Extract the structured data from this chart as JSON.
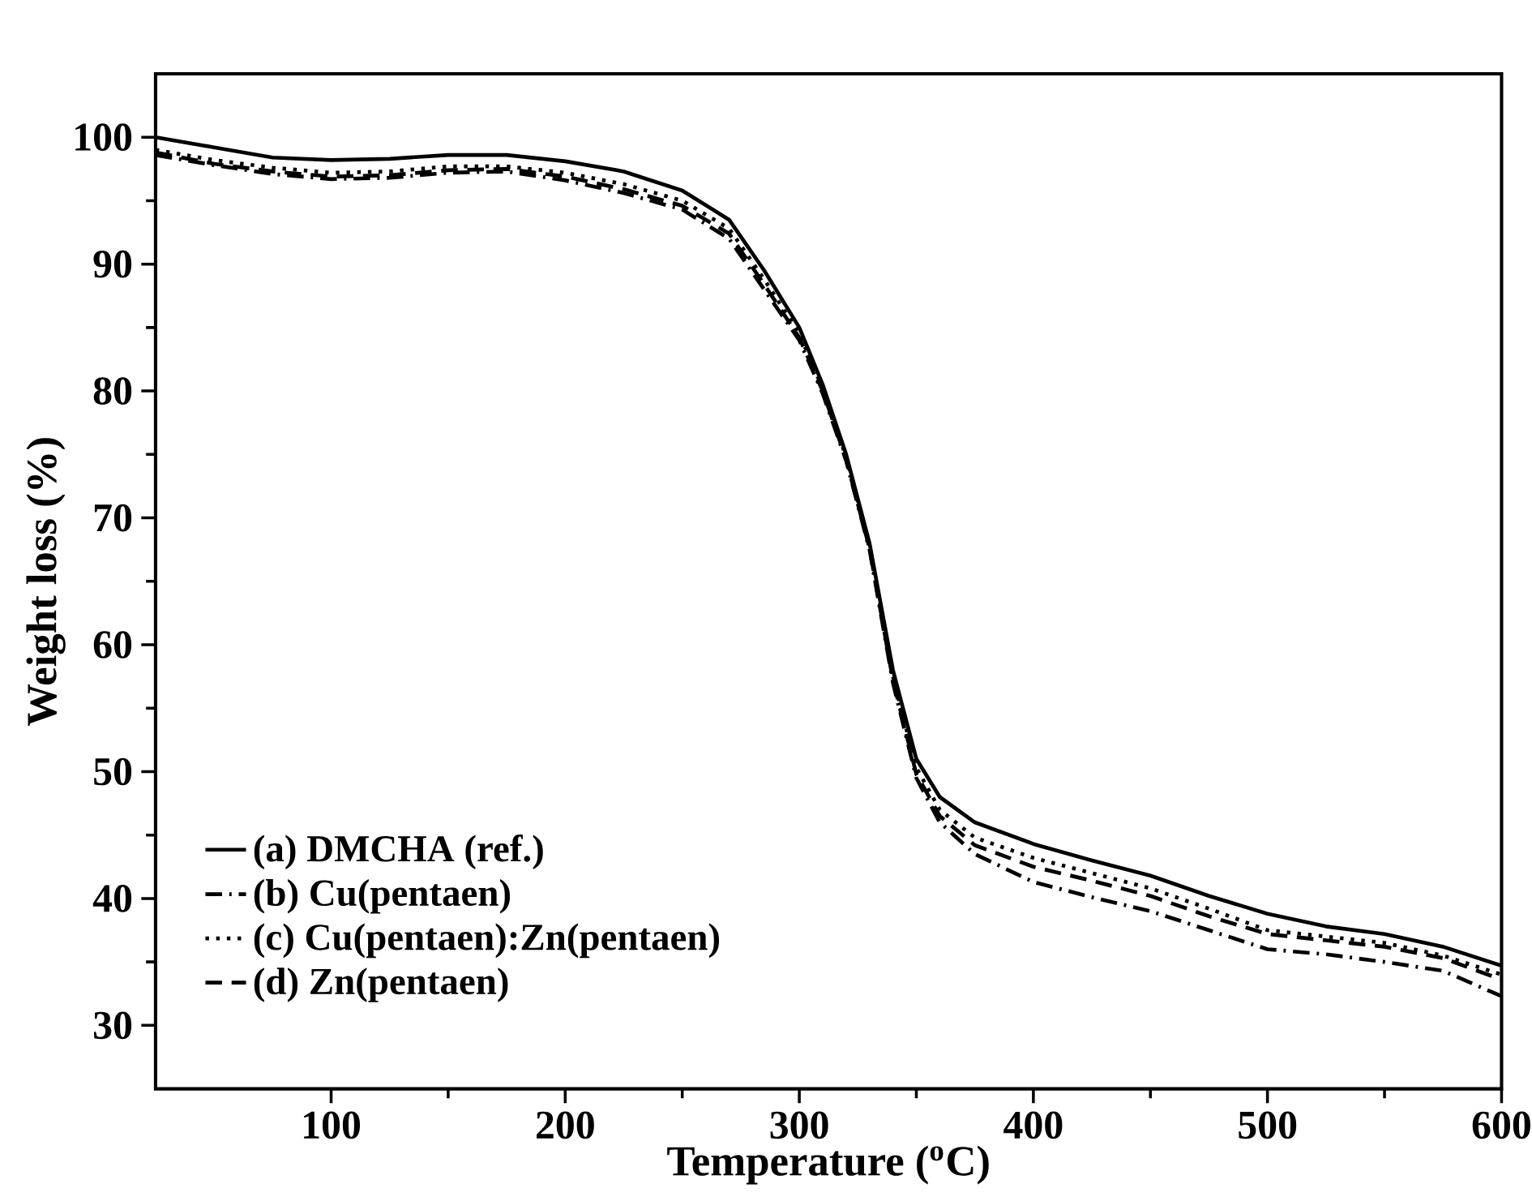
{
  "chart_data": {
    "type": "line",
    "xlabel": "Temperature ($^{o}$C)",
    "ylabel": "Weight loss (%)",
    "xlim": [
      25,
      600
    ],
    "ylim": [
      25,
      105
    ],
    "xticks": [
      100,
      200,
      300,
      400,
      500,
      600
    ],
    "yticks": [
      30,
      40,
      50,
      60,
      70,
      80,
      90,
      100
    ],
    "legend": "bottom left",
    "grid": false,
    "x": [
      25,
      50,
      75,
      100,
      125,
      150,
      175,
      200,
      225,
      250,
      270,
      285,
      300,
      310,
      320,
      330,
      340,
      350,
      360,
      375,
      400,
      425,
      450,
      475,
      500,
      525,
      550,
      575,
      600
    ],
    "series": [
      {
        "name": "(a)  DMCHA (ref.)",
        "color": "#000000",
        "line_style": "solid",
        "values": [
          100,
          99.2,
          98.4,
          98.2,
          98.3,
          98.6,
          98.6,
          98.1,
          97.3,
          95.8,
          93.5,
          89.5,
          85,
          80.5,
          75,
          68,
          58,
          51,
          48,
          46,
          44.3,
          43,
          41.8,
          40.2,
          38.8,
          37.8,
          37.2,
          36.2,
          34.7
        ]
      },
      {
        "name": "(b)  Cu(pentaen)",
        "color": "#000000",
        "line_style": "dashdot",
        "values": [
          98.6,
          97.8,
          97.1,
          96.7,
          96.8,
          97.2,
          97.3,
          96.6,
          95.6,
          94.3,
          92,
          88,
          84,
          79.8,
          74.5,
          67.5,
          57,
          49.5,
          46,
          43.5,
          41.3,
          40.1,
          39,
          37.5,
          36,
          35.6,
          35,
          34.3,
          32.3
        ]
      },
      {
        "name": "(c)  Cu(pentaen):Zn(pentaen)",
        "color": "#000000",
        "line_style": "dotted",
        "values": [
          99,
          98.2,
          97.6,
          97.2,
          97.3,
          97.7,
          97.7,
          97.2,
          96.3,
          95,
          92.8,
          88.8,
          84.5,
          80.2,
          74.8,
          67.8,
          57.5,
          50.3,
          47,
          44.8,
          43.2,
          42,
          40.8,
          39.2,
          37.5,
          37,
          36.5,
          35.5,
          34.0
        ]
      },
      {
        "name": "(d)  Zn(pentaen)",
        "color": "#000000",
        "line_style": "dashed",
        "values": [
          98.8,
          97.9,
          97.3,
          96.9,
          97,
          97.4,
          97.5,
          96.9,
          95.9,
          94.6,
          92.4,
          88.4,
          84.2,
          80,
          74.6,
          67.6,
          57.2,
          49.8,
          46.5,
          44.2,
          42.5,
          41.4,
          40.2,
          38.6,
          37.2,
          36.7,
          36.2,
          35.3,
          33.6
        ]
      }
    ]
  }
}
